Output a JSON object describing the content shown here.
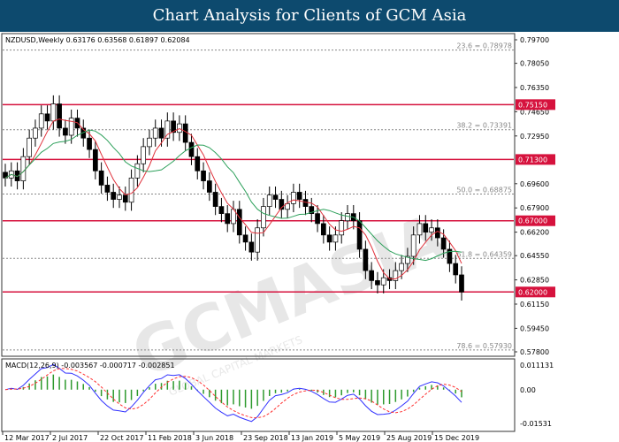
{
  "header": {
    "title": "Chart Analysis for Clients of GCM Asia"
  },
  "watermark": {
    "text": "GCMASIA",
    "sub": "GLOBAL CAPITAL MARKETS"
  },
  "chart_data": {
    "type": "candlestick",
    "symbol_line": "NZDUSD,Weekly  0.63176 0.63568 0.61897 0.62084",
    "price_axis": {
      "range": [
        0.578,
        0.797
      ],
      "ticks": [
        "0.79700",
        "0.78050",
        "0.76350",
        "0.74650",
        "0.72950",
        "0.69600",
        "0.67900",
        "0.66200",
        "0.64550",
        "0.62850",
        "0.61150",
        "0.59450",
        "0.57800"
      ]
    },
    "horizontal_levels": [
      {
        "label": "0.75150",
        "value": 0.7515
      },
      {
        "label": "0.71300",
        "value": 0.713
      },
      {
        "label": "0.67000",
        "value": 0.67
      },
      {
        "label": "0.62000",
        "value": 0.62
      }
    ],
    "fibonacci": [
      {
        "label": "23.6 = 0.78978",
        "value": 0.78978
      },
      {
        "label": "38.2 = 0.73391",
        "value": 0.73391
      },
      {
        "label": "50.0 = 0.68875",
        "value": 0.68875
      },
      {
        "label": "61.8 = 0.64359",
        "value": 0.64359
      },
      {
        "label": "78.6 = 0.57930",
        "value": 0.5793
      }
    ],
    "x_tick_labels": [
      "12 Mar 2017",
      "2 Jul 2017",
      "22 Oct 2017",
      "11 Feb 2018",
      "3 Jun 2018",
      "23 Sep 2018",
      "13 Jan 2019",
      "5 May 2019",
      "25 Aug 2019",
      "15 Dec 2019"
    ],
    "closes_biweekly": [
      0.7,
      0.705,
      0.698,
      0.715,
      0.728,
      0.735,
      0.745,
      0.74,
      0.752,
      0.735,
      0.73,
      0.742,
      0.735,
      0.728,
      0.72,
      0.705,
      0.695,
      0.69,
      0.685,
      0.688,
      0.683,
      0.7,
      0.71,
      0.722,
      0.728,
      0.735,
      0.728,
      0.74,
      0.732,
      0.738,
      0.725,
      0.715,
      0.705,
      0.698,
      0.69,
      0.68,
      0.675,
      0.668,
      0.678,
      0.66,
      0.655,
      0.648,
      0.665,
      0.68,
      0.688,
      0.685,
      0.678,
      0.682,
      0.69,
      0.685,
      0.68,
      0.675,
      0.668,
      0.66,
      0.655,
      0.66,
      0.67,
      0.675,
      0.67,
      0.65,
      0.635,
      0.628,
      0.625,
      0.63,
      0.628,
      0.635,
      0.64,
      0.645,
      0.66,
      0.668,
      0.662,
      0.665,
      0.658,
      0.65,
      0.64,
      0.632,
      0.62
    ],
    "ma_colors": {
      "fast": "#e0303a",
      "slow": "#2ca05a"
    },
    "macd": {
      "label": "MACD(12,26,9) -0.003567 -0.000717 -0.002851",
      "axis": [
        "0.011131",
        "0.00",
        "-0.01531"
      ],
      "range": [
        -0.01531,
        0.011131
      ],
      "colors": {
        "histogram": "#2e9a2e",
        "macd": "#3030ff",
        "signal": "#ff3030"
      }
    },
    "level_color": "#d6123d"
  }
}
